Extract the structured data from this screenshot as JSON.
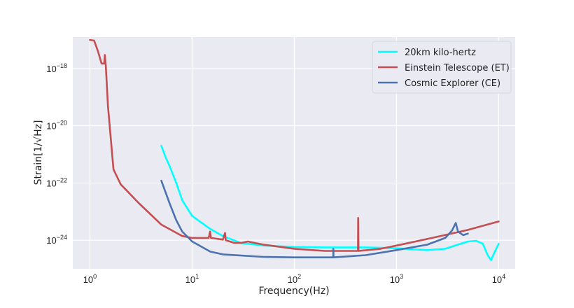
{
  "chart_data": {
    "type": "line",
    "xlabel": "Frequency(Hz)",
    "ylabel": "Strain[1/√Hz]",
    "x_scale": "log",
    "y_scale": "log",
    "xlim": [
      0.68,
      14500
    ],
    "ylim": [
      1e-25,
      1.26e-17
    ],
    "grid": true,
    "legend_position": "top-right",
    "x_ticks": [
      {
        "value": 1,
        "base": "10",
        "exp": "0"
      },
      {
        "value": 10,
        "base": "10",
        "exp": "1"
      },
      {
        "value": 100,
        "base": "10",
        "exp": "2"
      },
      {
        "value": 1000,
        "base": "10",
        "exp": "3"
      },
      {
        "value": 10000,
        "base": "10",
        "exp": "4"
      }
    ],
    "y_ticks": [
      {
        "value": 1e-18,
        "base": "10",
        "exp": "−18"
      },
      {
        "value": 1e-20,
        "base": "10",
        "exp": "−20"
      },
      {
        "value": 1e-22,
        "base": "10",
        "exp": "−22"
      },
      {
        "value": 1e-24,
        "base": "10",
        "exp": "−24"
      }
    ],
    "series": [
      {
        "name": "20km kilo-hertz",
        "color": "#00FFFF",
        "points": [
          [
            5,
            2e-21
          ],
          [
            5.5,
            8e-22
          ],
          [
            6,
            4e-22
          ],
          [
            7,
            1e-22
          ],
          [
            8,
            2.5e-23
          ],
          [
            10,
            7e-24
          ],
          [
            15,
            2.5e-24
          ],
          [
            20,
            1.4e-24
          ],
          [
            30,
            8e-25
          ],
          [
            50,
            6.5e-25
          ],
          [
            100,
            5.8e-25
          ],
          [
            200,
            5.6e-25
          ],
          [
            500,
            5.6e-25
          ],
          [
            1000,
            5.2e-25
          ],
          [
            2000,
            4.5e-25
          ],
          [
            3000,
            5e-25
          ],
          [
            4000,
            7e-25
          ],
          [
            5000,
            9e-25
          ],
          [
            6000,
            9.5e-25
          ],
          [
            7000,
            7.5e-25
          ],
          [
            7800,
            3e-25
          ],
          [
            8400,
            2e-25
          ],
          [
            9000,
            3.5e-25
          ],
          [
            10000,
            7.5e-25
          ]
        ]
      },
      {
        "name": "Einstein Telescope (ET)",
        "color": "#C44E52",
        "points": [
          [
            1.0,
            1e-17
          ],
          [
            1.1,
            9.5e-18
          ],
          [
            1.2,
            4e-18
          ],
          [
            1.3,
            1.5e-18
          ],
          [
            1.38,
            1.5e-18
          ],
          [
            1.4,
            3e-18
          ],
          [
            1.43,
            1.3e-18
          ],
          [
            1.5,
            5e-20
          ],
          [
            1.7,
            3e-22
          ],
          [
            2,
            9e-23
          ],
          [
            3,
            2e-23
          ],
          [
            5,
            3.5e-24
          ],
          [
            8,
            1.4e-24
          ],
          [
            10,
            1.2e-24
          ],
          [
            14.5,
            1.2e-24
          ],
          [
            15,
            2e-24
          ],
          [
            15.3,
            1.2e-24
          ],
          [
            20,
            1.05e-24
          ],
          [
            21,
            1.8e-24
          ],
          [
            21.3,
            1e-24
          ],
          [
            26,
            8e-25
          ],
          [
            30,
            8e-25
          ],
          [
            35,
            9e-25
          ],
          [
            50,
            7e-25
          ],
          [
            100,
            5e-25
          ],
          [
            200,
            4.2e-25
          ],
          [
            420,
            4.2e-25
          ],
          [
            422,
            6e-24
          ],
          [
            425,
            4.2e-25
          ],
          [
            700,
            5e-25
          ],
          [
            1000,
            6.5e-25
          ],
          [
            2000,
            1.1e-24
          ],
          [
            5000,
            2.3e-24
          ],
          [
            10000,
            4.5e-24
          ]
        ]
      },
      {
        "name": "Cosmic Explorer (CE)",
        "color": "#4C72B0",
        "points": [
          [
            5,
            1.2e-22
          ],
          [
            6,
            2e-23
          ],
          [
            7,
            5e-24
          ],
          [
            8,
            2e-24
          ],
          [
            10,
            9e-25
          ],
          [
            15,
            4e-25
          ],
          [
            20,
            3.2e-25
          ],
          [
            50,
            2.6e-25
          ],
          [
            100,
            2.5e-25
          ],
          [
            240,
            2.5e-25
          ],
          [
            241,
            5e-25
          ],
          [
            242,
            2.5e-25
          ],
          [
            500,
            3e-25
          ],
          [
            1000,
            4.5e-25
          ],
          [
            2000,
            7e-25
          ],
          [
            3000,
            1.2e-24
          ],
          [
            3500,
            2.2e-24
          ],
          [
            3800,
            4e-24
          ],
          [
            4000,
            2e-24
          ],
          [
            4500,
            1.5e-24
          ],
          [
            5000,
            1.7e-24
          ]
        ]
      }
    ]
  }
}
